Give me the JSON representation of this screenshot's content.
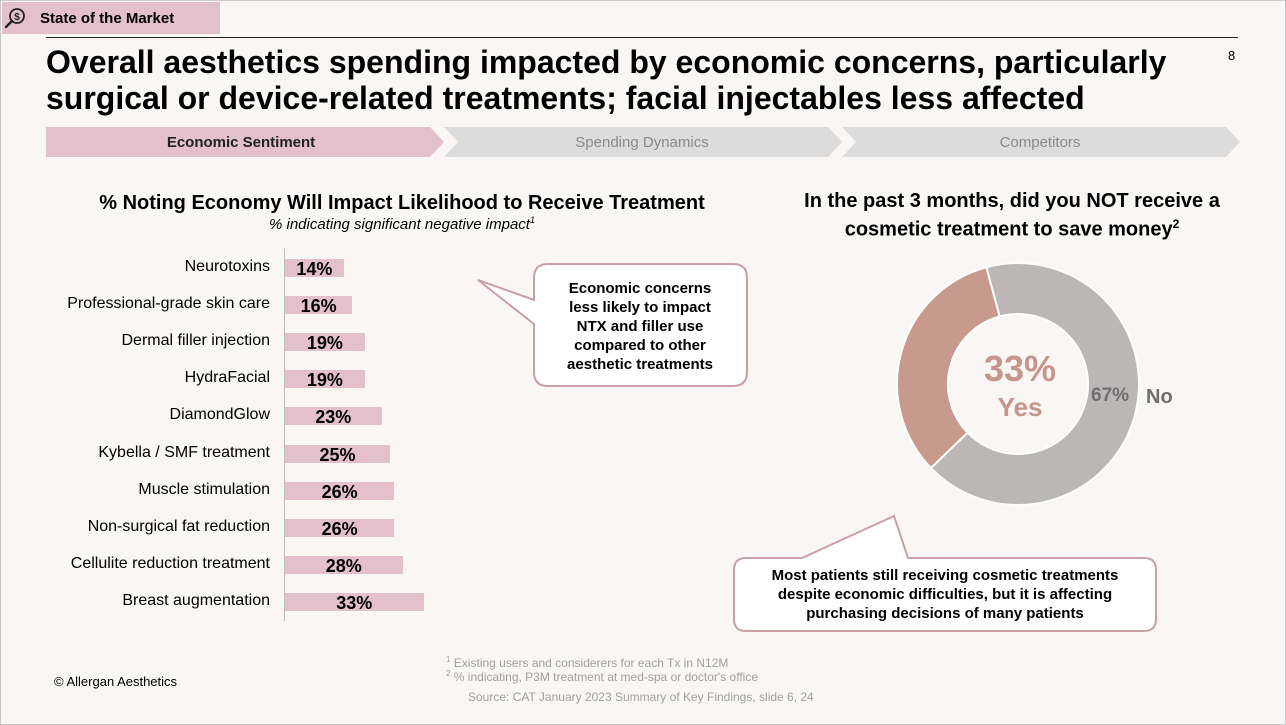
{
  "header": {
    "section": "State of the Market",
    "icon": "money-search-icon"
  },
  "page_number": "8",
  "title_line1": "Overall aesthetics spending impacted by economic concerns, particularly",
  "title_line2": "surgical or device-related treatments; facial injectables less affected",
  "steps": [
    "Economic Sentiment",
    "Spending Dynamics",
    "Competitors"
  ],
  "colors": {
    "active_step": "#e3c0cb",
    "inactive_step": "#dcdcdc",
    "bar": "#e3c0cb",
    "yes": "#c89a8e",
    "no": "#bcb7b6"
  },
  "chart_data": [
    {
      "type": "bar",
      "orientation": "horizontal",
      "title": "% Noting Economy Will Impact Likelihood to Receive Treatment",
      "subtitle": "% indicating significant negative impact",
      "subtitle_sup": "1",
      "categories": [
        "Neurotoxins",
        "Professional-grade skin care",
        "Dermal filler injection",
        "HydraFacial",
        "DiamondGlow",
        "Kybella / SMF treatment",
        "Muscle stimulation",
        "Non-surgical fat reduction",
        "Cellulite reduction treatment",
        "Breast augmentation"
      ],
      "values": [
        14,
        16,
        19,
        19,
        23,
        25,
        26,
        26,
        28,
        33
      ],
      "labels": [
        "14%",
        "16%",
        "19%",
        "19%",
        "23%",
        "25%",
        "26%",
        "26%",
        "28%",
        "33%"
      ]
    },
    {
      "type": "pie",
      "title": "In the past 3 months, did you NOT receive a cosmetic treatment to save money",
      "title_line1": "In the past 3 months, did you NOT receive a",
      "title_line2": "cosmetic treatment to save money",
      "title_sup": "2",
      "slices": [
        {
          "label": "Yes",
          "value": 33,
          "value_label": "33%"
        },
        {
          "label": "No",
          "value": 67,
          "value_label": "67%"
        }
      ]
    }
  ],
  "callout_bars": [
    "Economic concerns",
    "less likely to impact",
    "NTX and filler use",
    "compared to other",
    "aesthetic treatments"
  ],
  "callout_donut": [
    "Most patients still receiving cosmetic treatments",
    "despite economic difficulties, but it is affecting",
    "purchasing decisions of many patients"
  ],
  "footnotes": {
    "note1_sup": "1",
    "note1": "Existing users and considerers for each Tx in N12M",
    "note2_sup": "2",
    "note2": "% indicating, P3M treatment at med-spa or doctor's office",
    "source": "Source: CAT January 2023 Summary of Key Findings, slide 6, 24"
  },
  "copyright": "© Allergan Aesthetics"
}
